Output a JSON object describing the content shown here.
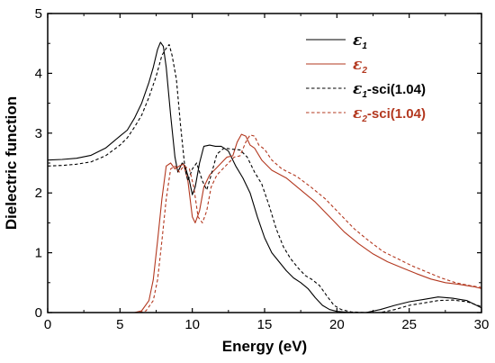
{
  "chart_data": {
    "type": "line",
    "xlabel": "Energy (eV)",
    "ylabel": "Dielectric function",
    "xlim": [
      0,
      30
    ],
    "ylim": [
      0,
      5
    ],
    "xticks": [
      0,
      5,
      10,
      15,
      20,
      25,
      30
    ],
    "yticks": [
      0,
      1,
      2,
      3,
      4,
      5
    ],
    "grid": false,
    "legend": "top-right",
    "series": [
      {
        "name": "ε1",
        "symbol": "ε",
        "sub": "1",
        "suffix": "",
        "color": "#000000",
        "dash": "solid",
        "points": [
          [
            0,
            2.55
          ],
          [
            1,
            2.56
          ],
          [
            2,
            2.58
          ],
          [
            3,
            2.63
          ],
          [
            4,
            2.75
          ],
          [
            5,
            2.95
          ],
          [
            5.5,
            3.05
          ],
          [
            6,
            3.25
          ],
          [
            6.5,
            3.5
          ],
          [
            7,
            3.85
          ],
          [
            7.3,
            4.1
          ],
          [
            7.6,
            4.4
          ],
          [
            7.8,
            4.52
          ],
          [
            8.0,
            4.45
          ],
          [
            8.2,
            4.1
          ],
          [
            8.5,
            3.3
          ],
          [
            8.8,
            2.6
          ],
          [
            9.0,
            2.35
          ],
          [
            9.3,
            2.5
          ],
          [
            9.5,
            2.45
          ],
          [
            9.8,
            2.2
          ],
          [
            10.0,
            1.97
          ],
          [
            10.2,
            2.1
          ],
          [
            10.5,
            2.5
          ],
          [
            10.8,
            2.78
          ],
          [
            11.2,
            2.8
          ],
          [
            11.6,
            2.78
          ],
          [
            12.0,
            2.78
          ],
          [
            12.5,
            2.7
          ],
          [
            13.0,
            2.45
          ],
          [
            13.5,
            2.25
          ],
          [
            14.0,
            2.0
          ],
          [
            14.5,
            1.6
          ],
          [
            15.0,
            1.25
          ],
          [
            15.5,
            1.0
          ],
          [
            16.0,
            0.85
          ],
          [
            16.5,
            0.7
          ],
          [
            17.0,
            0.58
          ],
          [
            17.5,
            0.5
          ],
          [
            18.0,
            0.4
          ],
          [
            18.5,
            0.25
          ],
          [
            19.0,
            0.12
          ],
          [
            19.5,
            0.05
          ],
          [
            20.0,
            0.02
          ],
          [
            21,
            0.0
          ],
          [
            22,
            0.0
          ],
          [
            23,
            0.05
          ],
          [
            24,
            0.12
          ],
          [
            25,
            0.18
          ],
          [
            26,
            0.22
          ],
          [
            27,
            0.26
          ],
          [
            28,
            0.24
          ],
          [
            29,
            0.2
          ],
          [
            30,
            0.08
          ]
        ]
      },
      {
        "name": "ε2",
        "symbol": "ε",
        "sub": "2",
        "suffix": "",
        "color": "#b3381f",
        "dash": "solid",
        "points": [
          [
            0,
            0
          ],
          [
            6,
            0
          ],
          [
            6.5,
            0.03
          ],
          [
            7,
            0.2
          ],
          [
            7.3,
            0.55
          ],
          [
            7.6,
            1.2
          ],
          [
            7.9,
            1.9
          ],
          [
            8.2,
            2.45
          ],
          [
            8.5,
            2.5
          ],
          [
            8.8,
            2.4
          ],
          [
            9.1,
            2.45
          ],
          [
            9.4,
            2.48
          ],
          [
            9.7,
            2.2
          ],
          [
            10.0,
            1.6
          ],
          [
            10.2,
            1.5
          ],
          [
            10.5,
            1.7
          ],
          [
            10.8,
            2.1
          ],
          [
            11.2,
            2.3
          ],
          [
            11.6,
            2.4
          ],
          [
            12.0,
            2.5
          ],
          [
            12.4,
            2.6
          ],
          [
            12.8,
            2.62
          ],
          [
            13.1,
            2.85
          ],
          [
            13.4,
            2.98
          ],
          [
            13.7,
            2.95
          ],
          [
            14.0,
            2.8
          ],
          [
            14.3,
            2.75
          ],
          [
            14.8,
            2.55
          ],
          [
            15.5,
            2.38
          ],
          [
            16.5,
            2.25
          ],
          [
            17.5,
            2.05
          ],
          [
            18.5,
            1.85
          ],
          [
            19.5,
            1.6
          ],
          [
            20.5,
            1.35
          ],
          [
            21.5,
            1.15
          ],
          [
            22.5,
            0.98
          ],
          [
            23.5,
            0.85
          ],
          [
            24.5,
            0.75
          ],
          [
            25.5,
            0.65
          ],
          [
            26.5,
            0.56
          ],
          [
            27.5,
            0.5
          ],
          [
            28.5,
            0.47
          ],
          [
            29.5,
            0.43
          ],
          [
            30,
            0.4
          ]
        ]
      },
      {
        "name": "ε1-sci(1.04)",
        "symbol": "ε",
        "sub": "1",
        "suffix": "-sci(1.04)",
        "color": "#000000",
        "dash": "dashed",
        "points": [
          [
            0,
            2.45
          ],
          [
            1,
            2.46
          ],
          [
            2,
            2.48
          ],
          [
            3,
            2.52
          ],
          [
            4,
            2.62
          ],
          [
            5,
            2.8
          ],
          [
            5.5,
            2.92
          ],
          [
            6,
            3.1
          ],
          [
            6.5,
            3.3
          ],
          [
            7,
            3.6
          ],
          [
            7.5,
            3.95
          ],
          [
            7.9,
            4.3
          ],
          [
            8.2,
            4.42
          ],
          [
            8.4,
            4.48
          ],
          [
            8.6,
            4.3
          ],
          [
            8.9,
            3.9
          ],
          [
            9.2,
            3.1
          ],
          [
            9.5,
            2.4
          ],
          [
            9.7,
            2.2
          ],
          [
            10.0,
            2.4
          ],
          [
            10.3,
            2.5
          ],
          [
            10.7,
            2.2
          ],
          [
            11.0,
            2.05
          ],
          [
            11.3,
            2.3
          ],
          [
            11.7,
            2.65
          ],
          [
            12.2,
            2.75
          ],
          [
            12.8,
            2.73
          ],
          [
            13.3,
            2.72
          ],
          [
            13.8,
            2.6
          ],
          [
            14.3,
            2.35
          ],
          [
            14.8,
            2.15
          ],
          [
            15.3,
            1.8
          ],
          [
            15.8,
            1.4
          ],
          [
            16.3,
            1.1
          ],
          [
            16.8,
            0.9
          ],
          [
            17.3,
            0.75
          ],
          [
            17.8,
            0.62
          ],
          [
            18.3,
            0.55
          ],
          [
            18.8,
            0.45
          ],
          [
            19.3,
            0.28
          ],
          [
            19.8,
            0.12
          ],
          [
            20.3,
            0.05
          ],
          [
            21,
            0.01
          ],
          [
            22,
            0.0
          ],
          [
            23,
            0.0
          ],
          [
            24,
            0.05
          ],
          [
            25,
            0.12
          ],
          [
            26,
            0.16
          ],
          [
            27,
            0.2
          ],
          [
            28,
            0.21
          ],
          [
            29,
            0.18
          ],
          [
            30,
            0.1
          ]
        ]
      },
      {
        "name": "ε2-sci(1.04)",
        "symbol": "ε",
        "sub": "2",
        "suffix": "-sci(1.04)",
        "color": "#b3381f",
        "dash": "dashed",
        "points": [
          [
            0,
            0
          ],
          [
            6.3,
            0
          ],
          [
            6.8,
            0.03
          ],
          [
            7.3,
            0.2
          ],
          [
            7.6,
            0.55
          ],
          [
            7.9,
            1.2
          ],
          [
            8.2,
            1.9
          ],
          [
            8.5,
            2.4
          ],
          [
            8.8,
            2.45
          ],
          [
            9.1,
            2.35
          ],
          [
            9.4,
            2.45
          ],
          [
            9.8,
            2.4
          ],
          [
            10.1,
            2.1
          ],
          [
            10.4,
            1.6
          ],
          [
            10.7,
            1.5
          ],
          [
            11.0,
            1.7
          ],
          [
            11.3,
            2.1
          ],
          [
            11.7,
            2.3
          ],
          [
            12.1,
            2.4
          ],
          [
            12.5,
            2.5
          ],
          [
            12.9,
            2.6
          ],
          [
            13.3,
            2.62
          ],
          [
            13.7,
            2.85
          ],
          [
            14.0,
            2.97
          ],
          [
            14.3,
            2.95
          ],
          [
            14.6,
            2.8
          ],
          [
            15.0,
            2.73
          ],
          [
            15.5,
            2.55
          ],
          [
            16.2,
            2.4
          ],
          [
            17.2,
            2.28
          ],
          [
            18.2,
            2.1
          ],
          [
            19.2,
            1.9
          ],
          [
            20.2,
            1.65
          ],
          [
            21.2,
            1.4
          ],
          [
            22.2,
            1.2
          ],
          [
            23.2,
            1.02
          ],
          [
            24.2,
            0.9
          ],
          [
            25.2,
            0.78
          ],
          [
            26.2,
            0.68
          ],
          [
            27.2,
            0.58
          ],
          [
            28.2,
            0.5
          ],
          [
            29.2,
            0.45
          ],
          [
            30,
            0.42
          ]
        ]
      }
    ]
  }
}
